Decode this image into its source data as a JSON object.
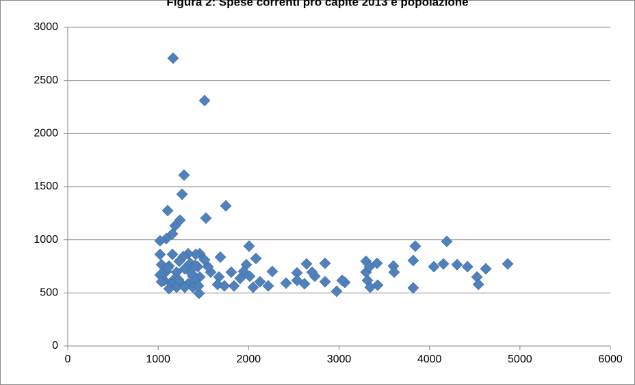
{
  "chart_data": {
    "type": "scatter",
    "title": "Figura 2: Spese correnti pro capite 2013 e popolazione",
    "color": "#4f81bd",
    "grid": true,
    "xlim": [
      0,
      6000
    ],
    "xticks": [
      0,
      1000,
      2000,
      3000,
      4000,
      5000,
      6000
    ],
    "ylim": [
      0,
      3000
    ],
    "yticks": [
      0,
      500,
      1000,
      1500,
      2000,
      2500,
      3000
    ],
    "x": [
      1165,
      1513,
      1286,
      1264,
      1748,
      1528,
      1241,
      1105,
      1188,
      1158,
      1090,
      1021,
      2005,
      3843,
      4191,
      1021,
      4865,
      4623,
      4525,
      4541,
      4420,
      4305,
      4154,
      4048,
      3820,
      3820,
      3601,
      3609,
      3420,
      3298,
      3298,
      3314,
      3344,
      3427,
      3336,
      3064,
      2973,
      3034,
      2845,
      2845,
      2732,
      2702,
      2641,
      2535,
      2535,
      2618,
      2414,
      2262,
      2217,
      2126,
      2081,
      2050,
      2012,
      1975,
      1944,
      1906,
      1838,
      1808,
      1687,
      1672,
      1657,
      1732,
      1581,
      1551,
      1513,
      1460,
      1437,
      1460,
      1452,
      1384,
      1415,
      1354,
      1331,
      1279,
      1233,
      1203,
      1180,
      1256,
      1331,
      1400,
      1294,
      1158,
      1120,
      1090,
      1067,
      1021,
      1037,
      1105,
      1150,
      1203,
      1226,
      1120,
      1037,
      1384,
      1445,
      1294,
      1407,
      1369
    ],
    "y": [
      2710,
      2311,
      1609,
      1429,
      1320,
      1204,
      1185,
      1275,
      1133,
      1056,
      1011,
      991,
      940,
      940,
      985,
      863,
      773,
      727,
      650,
      580,
      747,
      766,
      773,
      747,
      547,
      805,
      753,
      695,
      779,
      798,
      695,
      618,
      553,
      573,
      747,
      599,
      515,
      618,
      605,
      779,
      657,
      695,
      773,
      689,
      618,
      586,
      592,
      702,
      566,
      605,
      824,
      553,
      657,
      766,
      702,
      637,
      566,
      695,
      837,
      650,
      579,
      566,
      695,
      747,
      811,
      869,
      747,
      650,
      496,
      657,
      863,
      779,
      869,
      843,
      798,
      695,
      631,
      586,
      586,
      624,
      727,
      863,
      753,
      702,
      618,
      669,
      766,
      734,
      586,
      553,
      624,
      540,
      605,
      553,
      566,
      553,
      760,
      683
    ]
  }
}
